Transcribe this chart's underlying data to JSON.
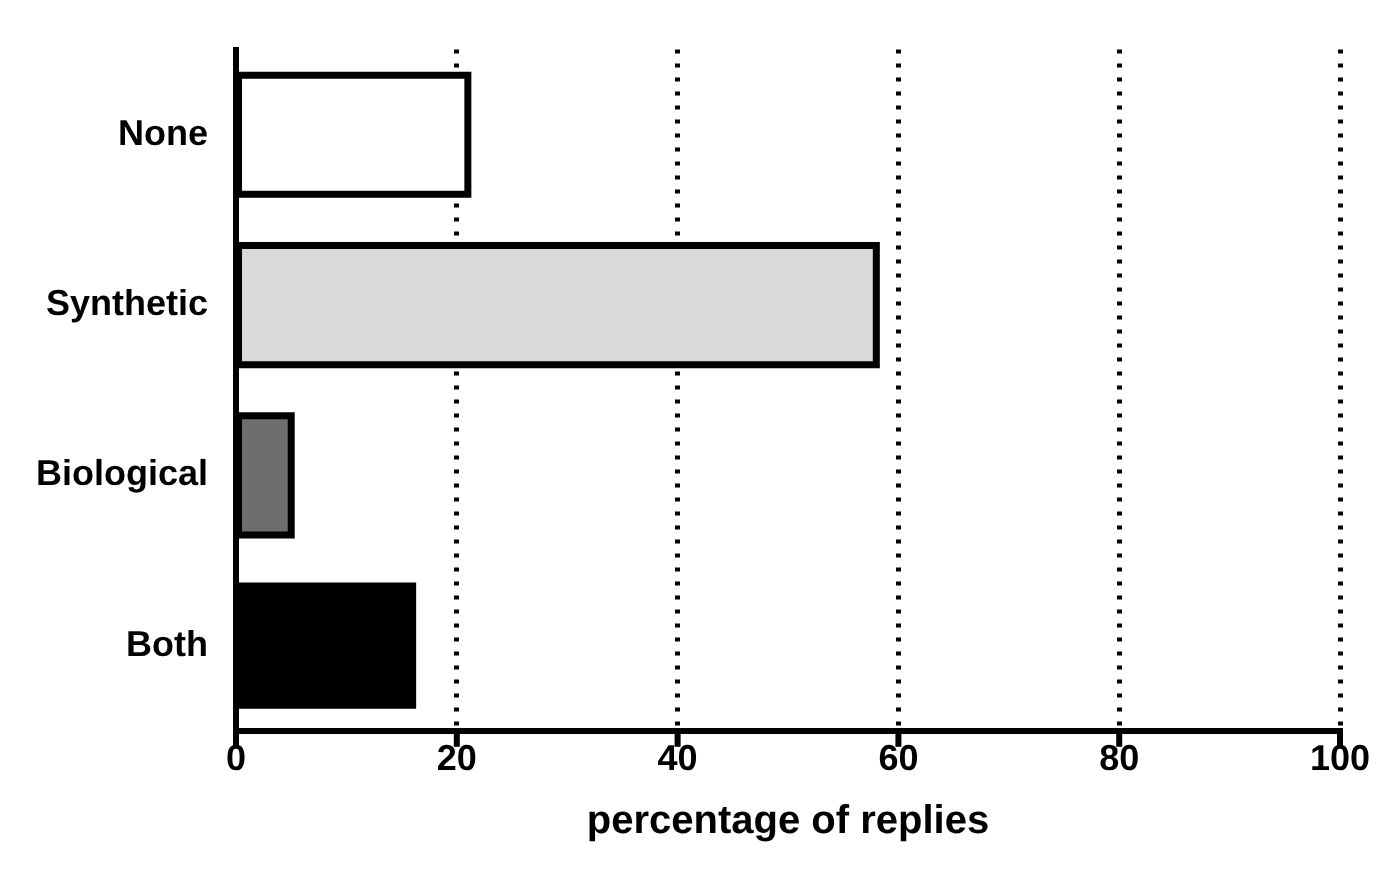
{
  "chart_data": {
    "type": "bar",
    "orientation": "horizontal",
    "xlabel": "percentage of replies",
    "categories": [
      "None",
      "Synthetic",
      "Biological",
      "Both"
    ],
    "values": [
      21,
      58,
      5,
      16
    ],
    "colors": [
      "#ffffff",
      "#d9d9d9",
      "#6e6e6e",
      "#000000"
    ],
    "xlim": [
      0,
      100
    ],
    "xticks": [
      0,
      20,
      40,
      60,
      80,
      100
    ],
    "grid": "x",
    "line_style": "dotted"
  }
}
